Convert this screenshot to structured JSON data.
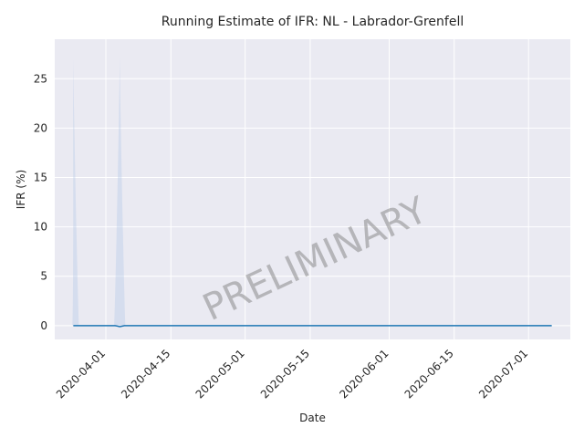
{
  "chart_data": {
    "type": "line",
    "title": "Running Estimate of IFR: NL - Labrador-Grenfell",
    "xlabel": "Date",
    "ylabel": "IFR (%)",
    "watermark": "PRELIMINARY",
    "x_range": [
      "2020-03-21",
      "2020-07-10"
    ],
    "ylim": [
      -1.4,
      29.0
    ],
    "y_ticks": [
      0,
      5,
      10,
      15,
      20,
      25
    ],
    "x_ticks": [
      "2020-04-01",
      "2020-04-15",
      "2020-05-01",
      "2020-05-15",
      "2020-06-01",
      "2020-06-15",
      "2020-07-01"
    ],
    "grid": true,
    "colors": {
      "line": "#1f77b4",
      "band": "#aec7e8",
      "background": "#eaeaf2",
      "grid": "#ffffff"
    },
    "series": [
      {
        "x_start": "2020-03-25",
        "x_end": "2020-07-06",
        "values_constant": 0.0,
        "dip": {
          "date": "2020-04-04",
          "value": -0.1
        }
      }
    ],
    "band_spikes": [
      {
        "start": "2020-03-25",
        "peak": "2020-03-25",
        "end": "2020-03-26",
        "upper": 27.0
      },
      {
        "start": "2020-04-03",
        "peak": "2020-04-04",
        "end": "2020-04-05",
        "upper": 27.3
      }
    ]
  }
}
